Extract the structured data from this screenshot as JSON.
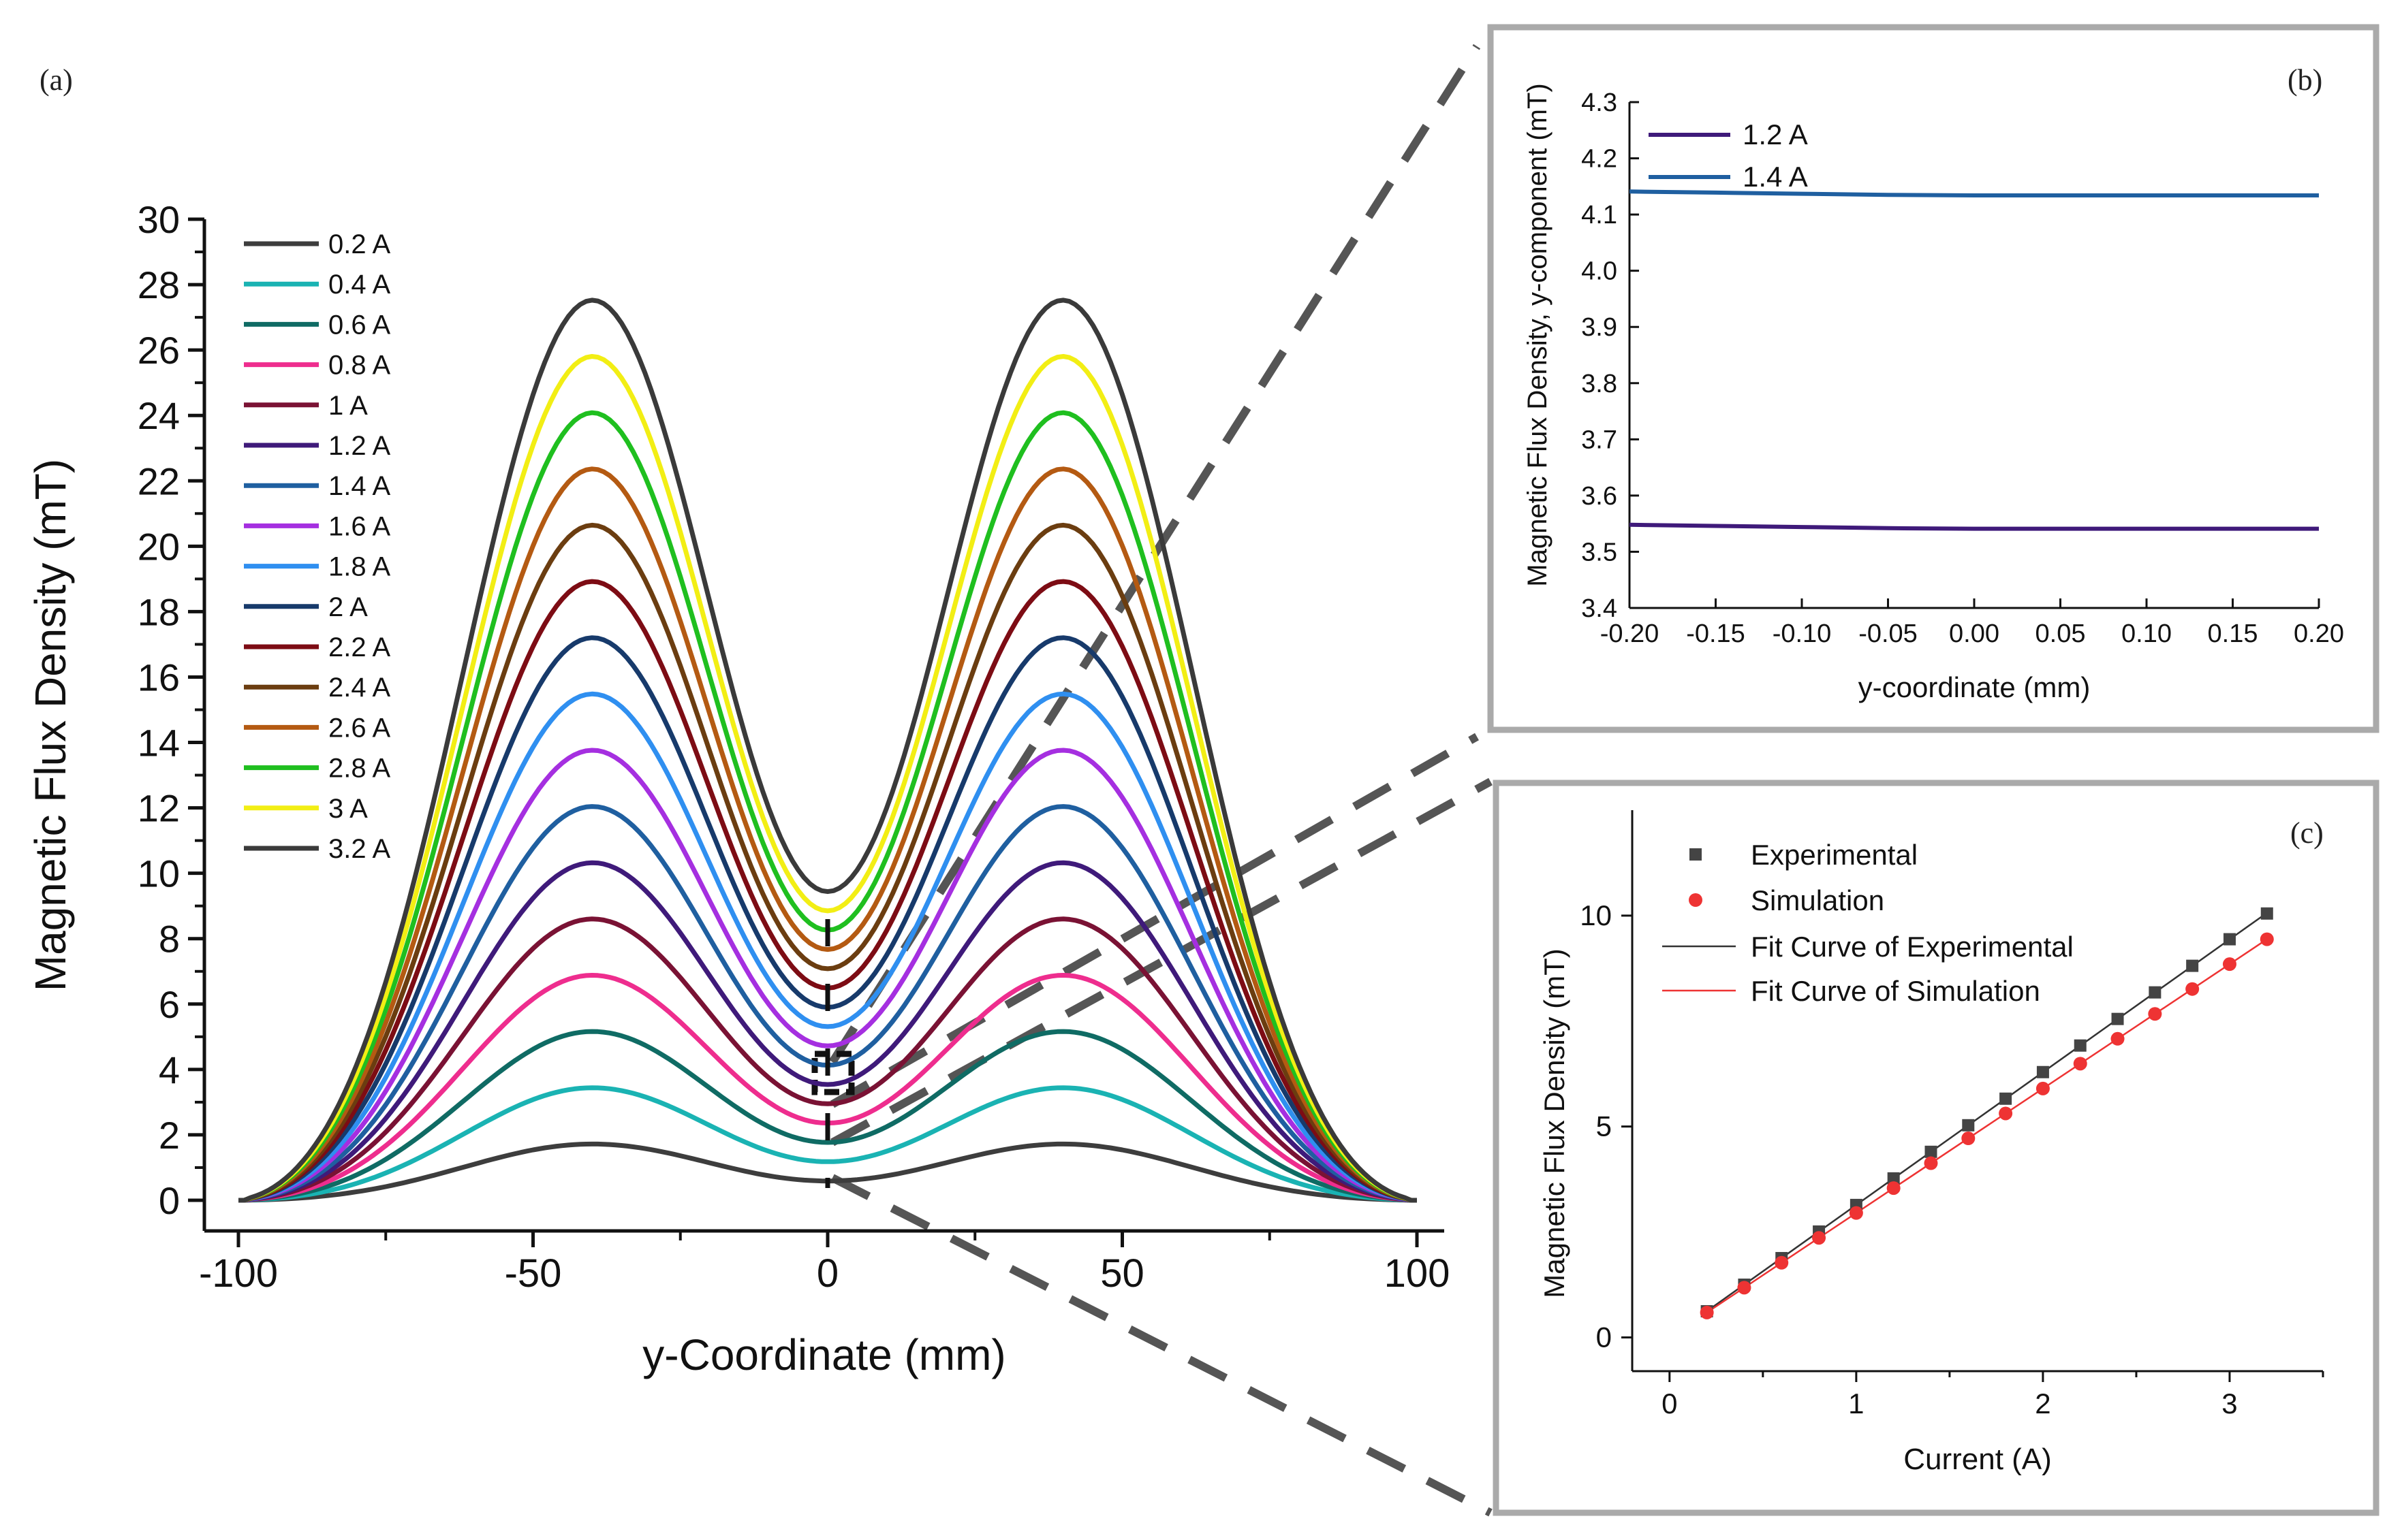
{
  "chart_data": [
    {
      "panel": "(a)",
      "type": "line",
      "xlabel": "y-Coordinate (mm)",
      "ylabel": "Magnetic Flux Density (mT)",
      "xlim": [
        -100,
        100
      ],
      "ylim": [
        0,
        30
      ],
      "xticks": [
        -100,
        -50,
        0,
        50,
        100
      ],
      "yticks": [
        0,
        2,
        4,
        6,
        8,
        10,
        12,
        14,
        16,
        18,
        20,
        22,
        24,
        26,
        28,
        30
      ],
      "legend_position": "top-left",
      "x_peak": [
        -40,
        40
      ],
      "series": [
        {
          "name": "0.2 A",
          "color": "#3d3d3d",
          "peak": 1.72,
          "center": 0.59
        },
        {
          "name": "0.4 A",
          "color": "#1ab3b3",
          "peak": 3.44,
          "center": 1.18
        },
        {
          "name": "0.6 A",
          "color": "#0f6b64",
          "peak": 5.16,
          "center": 1.77
        },
        {
          "name": "0.8 A",
          "color": "#ee2d8e",
          "peak": 6.88,
          "center": 2.36
        },
        {
          "name": "1 A",
          "color": "#7a1234",
          "peak": 8.6,
          "center": 2.95
        },
        {
          "name": "1.2 A",
          "color": "#3f1a7a",
          "peak": 10.32,
          "center": 3.54
        },
        {
          "name": "1.4 A",
          "color": "#1f5fa0",
          "peak": 12.04,
          "center": 4.13
        },
        {
          "name": "1.6 A",
          "color": "#a52fe0",
          "peak": 13.76,
          "center": 4.72
        },
        {
          "name": "1.8 A",
          "color": "#2f8ff0",
          "peak": 15.48,
          "center": 5.31
        },
        {
          "name": "2 A",
          "color": "#173a6b",
          "peak": 17.2,
          "center": 5.9
        },
        {
          "name": "2.2 A",
          "color": "#7d0c14",
          "peak": 18.92,
          "center": 6.49
        },
        {
          "name": "2.4 A",
          "color": "#6b3d10",
          "peak": 20.64,
          "center": 7.08
        },
        {
          "name": "2.6 A",
          "color": "#b45a12",
          "peak": 22.36,
          "center": 7.67
        },
        {
          "name": "2.8 A",
          "color": "#1fbf1f",
          "peak": 24.08,
          "center": 8.26
        },
        {
          "name": "3 A",
          "color": "#f2ee14",
          "peak": 25.8,
          "center": 8.85
        },
        {
          "name": "3.2 A",
          "color": "#3a3a3a",
          "peak": 27.52,
          "center": 9.44
        }
      ]
    },
    {
      "panel": "(b)",
      "type": "line",
      "xlabel": "y-coordinate (mm)",
      "ylabel": "Magnetic Flux Density, y-component (mT)",
      "xlim": [
        -0.2,
        0.2
      ],
      "ylim": [
        3.4,
        4.3
      ],
      "xtick_labels": [
        "-0.20",
        "-0.15",
        "-0.10",
        "-0.05",
        "0.00",
        "0.05",
        "0.10",
        "0.15",
        "0.20"
      ],
      "ytick_labels": [
        "3.4",
        "3.5",
        "3.6",
        "3.7",
        "3.8",
        "3.9",
        "4.0",
        "4.1",
        "4.2",
        "4.3"
      ],
      "legend_position": "top-left",
      "x": [
        -0.2,
        -0.15,
        -0.1,
        -0.05,
        0.0,
        0.05,
        0.1,
        0.15,
        0.2
      ],
      "series": [
        {
          "name": "1.2 A",
          "color": "#3f1a7a",
          "values": [
            3.548,
            3.546,
            3.544,
            3.542,
            3.541,
            3.541,
            3.541,
            3.541,
            3.541
          ]
        },
        {
          "name": "1.4 A",
          "color": "#1f5fa0",
          "values": [
            4.141,
            4.139,
            4.137,
            4.135,
            4.134,
            4.134,
            4.134,
            4.134,
            4.134
          ]
        }
      ]
    },
    {
      "panel": "(c)",
      "type": "scatter",
      "xlabel": "Current (A)",
      "ylabel": "Magnetic Flux Density (mT)",
      "xlim": [
        -0.2,
        3.5
      ],
      "ylim": [
        -0.8,
        12.5
      ],
      "xticks": [
        0,
        1,
        2,
        3
      ],
      "yticks": [
        0,
        5,
        10
      ],
      "legend_position": "top-left",
      "x": [
        0.2,
        0.4,
        0.6,
        0.8,
        1.0,
        1.2,
        1.4,
        1.6,
        1.8,
        2.0,
        2.2,
        2.4,
        2.6,
        2.8,
        3.0,
        3.2
      ],
      "series": [
        {
          "name": "Experimental",
          "color": "#444444",
          "marker": "square",
          "values": [
            0.62,
            1.25,
            1.88,
            2.51,
            3.14,
            3.77,
            4.4,
            5.03,
            5.66,
            6.29,
            6.92,
            7.55,
            8.18,
            8.81,
            9.44,
            10.05
          ]
        },
        {
          "name": "Simulation",
          "color": "#ee3333",
          "marker": "circle",
          "values": [
            0.59,
            1.18,
            1.77,
            2.36,
            2.95,
            3.54,
            4.13,
            4.72,
            5.31,
            5.9,
            6.49,
            7.08,
            7.67,
            8.26,
            8.85,
            9.44
          ]
        }
      ],
      "fits": [
        {
          "name": "Fit Curve of Experimental",
          "color": "#333333"
        },
        {
          "name": "Fit Curve of Simulation",
          "color": "#ee3333"
        }
      ]
    }
  ]
}
